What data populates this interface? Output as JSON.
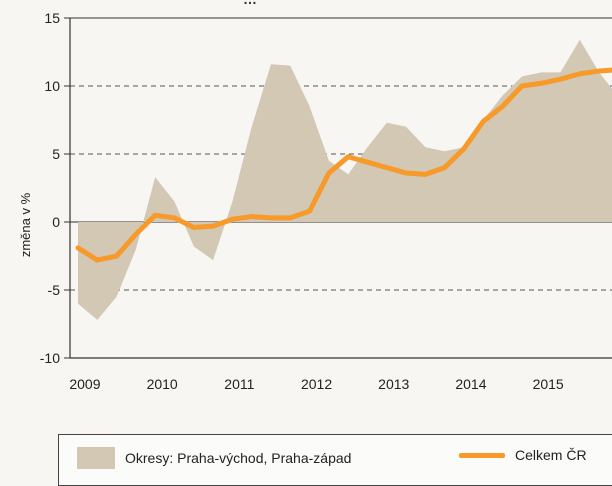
{
  "chart_data": {
    "type": "area+line",
    "title": "…",
    "ylabel": "změna v %",
    "xlabel": "",
    "ylim": [
      -10,
      15
    ],
    "xlim": [
      2009.0,
      2016.0
    ],
    "yticks": [
      15,
      10,
      5,
      0,
      -5,
      -10
    ],
    "xticks": [
      "2009",
      "2010",
      "2011",
      "2012",
      "2013",
      "2014",
      "2015"
    ],
    "grid": "horizontal dashed",
    "legend_position": "bottom",
    "series": [
      {
        "name": "Okresy: Praha-východ, Praha-západ",
        "type": "area",
        "color": "#d2c8b4",
        "x": [
          2009.0,
          2009.25,
          2009.5,
          2009.75,
          2010.0,
          2010.25,
          2010.5,
          2010.75,
          2011.0,
          2011.25,
          2011.5,
          2011.75,
          2012.0,
          2012.25,
          2012.5,
          2012.75,
          2013.0,
          2013.25,
          2013.5,
          2013.75,
          2014.0,
          2014.25,
          2014.5,
          2014.75,
          2015.0,
          2015.25,
          2015.5,
          2015.75,
          2016.0
        ],
        "y": [
          -6.0,
          -7.2,
          -5.5,
          -2.0,
          3.3,
          1.5,
          -1.8,
          -2.8,
          1.5,
          7.0,
          11.6,
          11.5,
          8.5,
          4.5,
          3.5,
          5.5,
          7.3,
          7.0,
          5.5,
          5.2,
          5.5,
          7.5,
          9.3,
          10.7,
          11.0,
          11.0,
          13.4,
          11.0,
          9.2
        ]
      },
      {
        "name": "Celkem ČR",
        "type": "line",
        "color": "#f79a2a",
        "x": [
          2009.0,
          2009.25,
          2009.5,
          2009.75,
          2010.0,
          2010.25,
          2010.5,
          2010.75,
          2011.0,
          2011.25,
          2011.5,
          2011.75,
          2012.0,
          2012.25,
          2012.5,
          2012.75,
          2013.0,
          2013.25,
          2013.5,
          2013.75,
          2014.0,
          2014.25,
          2014.5,
          2014.75,
          2015.0,
          2015.25,
          2015.5,
          2015.75,
          2016.0
        ],
        "y": [
          -1.9,
          -2.8,
          -2.5,
          -0.9,
          0.5,
          0.3,
          -0.4,
          -0.3,
          0.2,
          0.4,
          0.3,
          0.3,
          0.8,
          3.6,
          4.8,
          4.4,
          4.0,
          3.6,
          3.5,
          4.0,
          5.4,
          7.4,
          8.5,
          10.0,
          10.2,
          10.5,
          10.9,
          11.1,
          11.2
        ]
      }
    ]
  }
}
